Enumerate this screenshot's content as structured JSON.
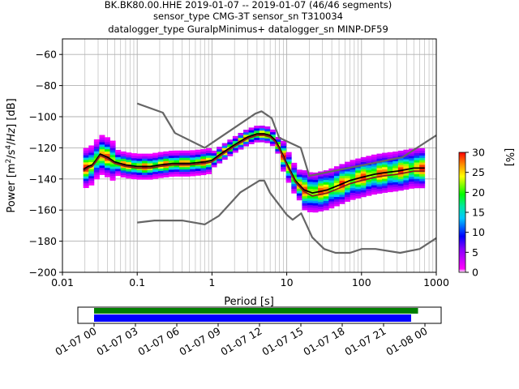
{
  "title_lines": [
    "BK.BK80.00.HHE   2019-01-07 -- 2019-01-07  (46/46 segments)",
    "sensor_type CMG-3T sensor_sn T310034",
    "datalogger_type GuralpMinimus+ datalogger_sn MINP-DF59"
  ],
  "chart_data": [
    {
      "type": "heatmap",
      "xlabel": "Period [s]",
      "ylabel": "Power [m²/s⁴/Hz] [dB]",
      "x_scale": "log",
      "xlim": [
        0.01,
        1000
      ],
      "ylim": [
        -200,
        -50
      ],
      "x_ticks": [
        0.01,
        0.1,
        1,
        10,
        100,
        1000
      ],
      "x_tick_labels": [
        "0.01",
        "0.1",
        "1",
        "10",
        "100",
        "1000"
      ],
      "y_ticks": [
        -200,
        -180,
        -160,
        -140,
        -120,
        -100,
        -80,
        -60
      ],
      "y_tick_labels": [
        "−200",
        "−180",
        "−160",
        "−140",
        "−120",
        "−100",
        "−80",
        "−60"
      ],
      "grid": true,
      "colorbar": {
        "label": "[%]",
        "range": [
          0,
          30
        ],
        "ticks": [
          "0",
          "5",
          "10",
          "15",
          "20",
          "25",
          "30"
        ],
        "colormap": "pqlx"
      },
      "series": [
        {
          "role": "mean",
          "color": "#000000",
          "x": [
            0.019,
            0.022,
            0.025,
            0.028,
            0.032,
            0.04,
            0.05,
            0.07,
            0.1,
            0.15,
            0.2,
            0.3,
            0.5,
            0.8,
            1.0,
            1.3,
            2.0,
            3.0,
            4.0,
            5.0,
            6.0,
            7.0,
            8.0,
            10,
            13,
            17,
            22,
            28,
            35,
            50,
            70,
            100,
            150,
            200,
            300,
            500,
            700
          ],
          "y": [
            -134,
            -132,
            -131,
            -128,
            -124,
            -126,
            -129,
            -131,
            -132,
            -132,
            -131,
            -130,
            -130,
            -129,
            -128,
            -124,
            -118,
            -113,
            -111,
            -111,
            -112,
            -115,
            -120,
            -130,
            -141,
            -147,
            -149,
            -148,
            -147,
            -144,
            -141,
            -139,
            -137,
            -136,
            -135,
            -133,
            -133
          ]
        },
        {
          "role": "mode",
          "color": "#8b1c1c",
          "x": [
            0.019,
            0.022,
            0.025,
            0.028,
            0.032,
            0.04,
            0.05,
            0.07,
            0.1,
            0.15,
            0.2,
            0.3,
            0.5,
            0.8,
            1.0,
            1.3,
            2.0,
            3.0,
            4.0,
            5.0,
            6.0,
            7.0,
            8.0,
            10,
            13,
            17,
            22,
            28,
            35,
            50,
            70,
            100,
            150,
            200,
            300,
            500,
            700
          ],
          "y": [
            -135,
            -133,
            -132,
            -129,
            -125,
            -127,
            -130,
            -132,
            -133,
            -133,
            -132,
            -131,
            -131,
            -130,
            -129,
            -125,
            -119,
            -114,
            -112,
            -112,
            -113,
            -116,
            -121,
            -131,
            -142,
            -148,
            -151,
            -150,
            -149,
            -146,
            -143,
            -141,
            -139,
            -138,
            -137,
            -135,
            -135
          ]
        },
        {
          "role": "noise-model-high",
          "color": "#666666",
          "x": [
            0.1,
            0.22,
            0.32,
            0.8,
            3.8,
            4.6,
            6.3,
            7.9,
            15.4,
            20,
            354.8,
            1000
          ],
          "y": [
            -91.5,
            -97.4,
            -110.5,
            -120,
            -98,
            -96.5,
            -101,
            -113.5,
            -120,
            -138,
            -126,
            -112
          ]
        },
        {
          "role": "noise-model-low",
          "color": "#666666",
          "x": [
            0.1,
            0.17,
            0.4,
            0.8,
            1.24,
            2.4,
            4.3,
            5,
            6,
            10,
            12,
            15.6,
            21.9,
            31.6,
            45,
            70,
            101,
            154,
            328,
            600,
            1000
          ],
          "y": [
            -168,
            -166.7,
            -166.7,
            -169.2,
            -163.7,
            -148.6,
            -141.1,
            -141.1,
            -149,
            -163,
            -166.2,
            -162.1,
            -177.5,
            -185,
            -187.5,
            -187.5,
            -185,
            -185,
            -187.5,
            -185,
            -178
          ]
        }
      ]
    },
    {
      "type": "bar",
      "xlim": [
        "01-07 00",
        "01-08 00"
      ],
      "x_tick_labels": [
        "01-07 00",
        "01-07 03",
        "01-07 06",
        "01-07 09",
        "01-07 12",
        "01-07 15",
        "01-07 18",
        "01-07 21",
        "01-08 00"
      ],
      "series": [
        {
          "role": "data-coverage",
          "color": "#008000",
          "start_hour": 0.0,
          "end_hour": 23.5
        },
        {
          "role": "psd-coverage",
          "color": "#0000ff",
          "start_hour": 0.0,
          "end_hour": 23.0
        }
      ]
    }
  ]
}
